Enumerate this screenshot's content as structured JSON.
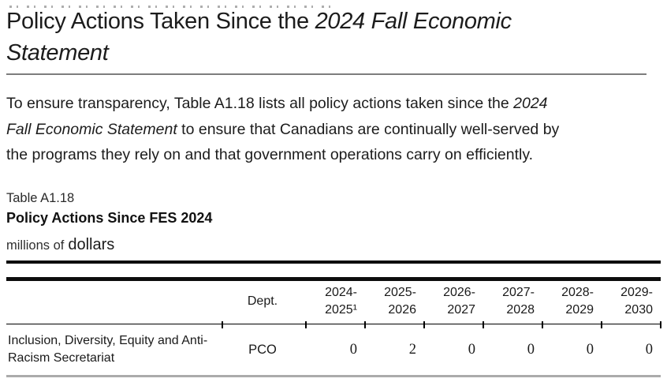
{
  "colors": {
    "text": "#1a1a1a",
    "title_rule_gray": "#7d7d7d",
    "table_rule_black": "#0d0d0d",
    "table_bottom_rule_gray": "#ababab"
  },
  "header": {
    "title_segments": [
      {
        "text": "Policy Actions Taken Since the ",
        "italic": false
      },
      {
        "text": "2024 Fall Economic Statement",
        "italic": true
      }
    ],
    "intro_lines": [
      [
        {
          "text": "To ensure transparency, Table A1.18 lists all policy actions taken since the ",
          "italic": false
        },
        {
          "text": "2024",
          "italic": true
        }
      ],
      [
        {
          "text": "Fall Economic Statement",
          "italic": true
        },
        {
          "text": " to ensure that Canadians are continually well-served by",
          "italic": false
        }
      ],
      [
        {
          "text": "the programs they rely on and that government operations carry on efficiently.",
          "italic": false
        }
      ]
    ]
  },
  "table": {
    "label": "Table A1.18",
    "title": "Policy Actions Since FES 2024",
    "unit_prefix": "millions of",
    "unit_word": "dollars",
    "columns": {
      "dept": "Dept.",
      "years": [
        [
          "2024-",
          "2025¹"
        ],
        [
          "2025-",
          "2026"
        ],
        [
          "2026-",
          "2027"
        ],
        [
          "2027-",
          "2028"
        ],
        [
          "2028-",
          "2029"
        ],
        [
          "2029-",
          "2030"
        ]
      ]
    },
    "row": {
      "label": "Inclusion, Diversity, Equity and Anti-Racism Secretariat",
      "dept": "PCO",
      "values": [
        "0",
        "2",
        "0",
        "0",
        "0",
        "0"
      ]
    }
  }
}
